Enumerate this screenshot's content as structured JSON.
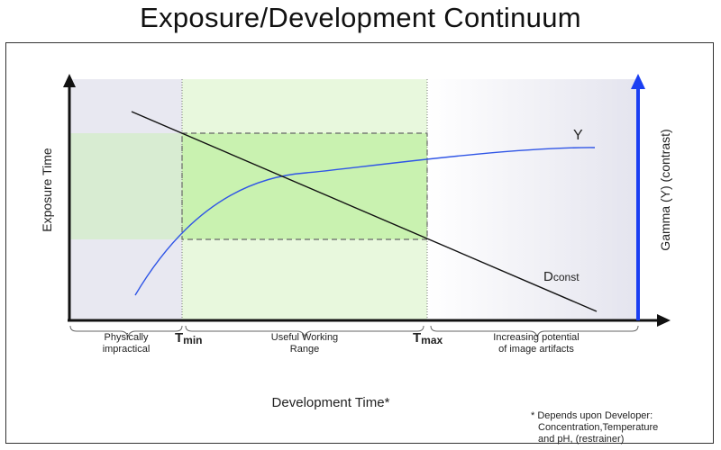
{
  "title": "Exposure/Development Continuum",
  "y_axis_left": "Exposure Time",
  "y_axis_right": "Gamma (Υ) (contrast)",
  "x_axis": "Development Time*",
  "tick_min": {
    "letter": "T",
    "sub": "min"
  },
  "tick_max": {
    "letter": "T",
    "sub": "max"
  },
  "regions": {
    "left": [
      "Physically",
      "impractical"
    ],
    "middle": [
      "Useful Working",
      "Range"
    ],
    "right": [
      "Increasing potential",
      "of image artifacts"
    ]
  },
  "curve_gamma_label": "Υ",
  "curve_dconst_label": {
    "letter": "D",
    "sub": "const"
  },
  "footnote": [
    "* Depends upon Developer:",
    "Concentration,Temperature",
    "and pH, (restrainer)"
  ],
  "colors": {
    "left_region": "#e8e8f1",
    "useful_range": "#e8f8dd",
    "box_fill": "#c9f2b0",
    "band_fill": "#d8ecd2",
    "gamma_axis": "#1a3ef2",
    "gamma_curve": "#2f55e6",
    "dconst_line": "#111111"
  }
}
